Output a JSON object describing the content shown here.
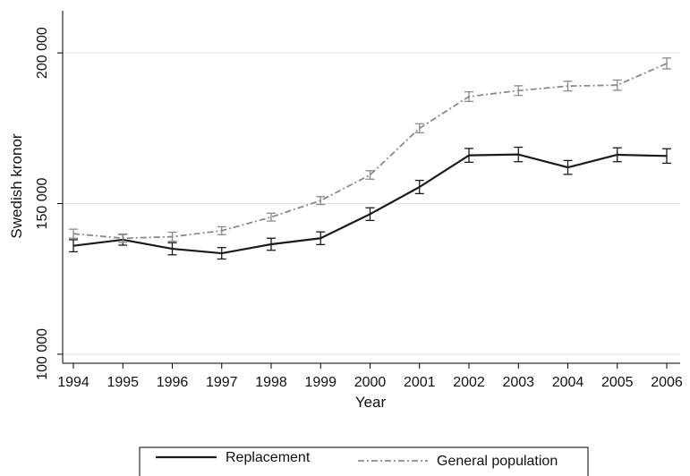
{
  "chart_data": {
    "type": "line",
    "title": "",
    "xlabel": "Year",
    "ylabel": "Swedish kronor",
    "x": [
      1994,
      1995,
      1996,
      1997,
      1998,
      1999,
      2000,
      2001,
      2002,
      2003,
      2004,
      2005,
      2006
    ],
    "x_tick_labels": [
      "1994",
      "1995",
      "1996",
      "1997",
      "1998",
      "1999",
      "2000",
      "2001",
      "2002",
      "2003",
      "2004",
      "2005",
      "2006"
    ],
    "ylim": [
      97000,
      214000
    ],
    "y_ticks": [
      100000,
      150000,
      200000
    ],
    "y_tick_labels": [
      "100 000",
      "150 000",
      "200 000"
    ],
    "grid": true,
    "legend_position": "bottom",
    "series": [
      {
        "name": "Replacement",
        "color": "#1a1a1a",
        "style": "solid",
        "values": [
          136000,
          138000,
          135000,
          133500,
          136500,
          138500,
          146500,
          155500,
          166000,
          166300,
          162000,
          166200,
          165800
        ],
        "error": [
          2000,
          1800,
          2000,
          1900,
          2000,
          2100,
          2100,
          2200,
          2300,
          2400,
          2300,
          2300,
          2400
        ]
      },
      {
        "name": "General population",
        "color": "#8a8a8a",
        "style": "dashdot",
        "values": [
          140000,
          138500,
          139000,
          141000,
          145500,
          151000,
          159500,
          175000,
          185500,
          187500,
          189000,
          189300,
          196500
        ],
        "error": [
          1500,
          1400,
          1500,
          1300,
          1300,
          1300,
          1400,
          1500,
          1600,
          1600,
          1600,
          1700,
          1800
        ]
      }
    ]
  }
}
